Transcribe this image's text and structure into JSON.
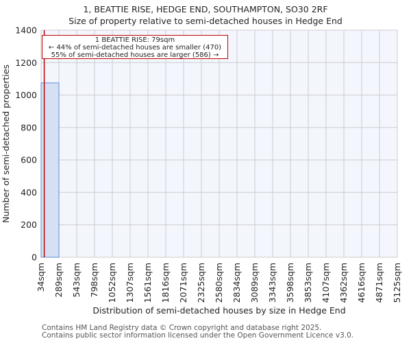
{
  "header": {
    "title": "1, BEATTIE RISE, HEDGE END, SOUTHAMPTON, SO30 2RF",
    "subtitle": "Size of property relative to semi-detached houses in Hedge End"
  },
  "annotation": {
    "line1": "1 BEATTIE RISE: 79sqm",
    "line2": "← 44% of semi-detached houses are smaller (470)",
    "line3": "55% of semi-detached houses are larger (586) →"
  },
  "footer": {
    "line1": "Contains HM Land Registry data © Crown copyright and database right 2025.",
    "line2": "Contains public sector information licensed under the Open Government Licence v3.0."
  },
  "colors": {
    "bar_fill": "#d6e0f5",
    "bar_edge": "#5b8fd0",
    "marker_line": "#c00000",
    "plot_bg": "#f4f6fe",
    "grid": "#cccccc"
  },
  "chart_data": {
    "type": "bar",
    "title": "1, BEATTIE RISE, HEDGE END, SOUTHAMPTON, SO30 2RF",
    "subtitle": "Size of property relative to semi-detached houses in Hedge End",
    "xlabel": "Distribution of semi-detached houses by size in Hedge End",
    "ylabel": "Number of semi-detached properties",
    "categories": [
      "34sqm",
      "289sqm",
      "543sqm",
      "798sqm",
      "1052sqm",
      "1307sqm",
      "1561sqm",
      "1816sqm",
      "2071sqm",
      "2325sqm",
      "2580sqm",
      "2834sqm",
      "3089sqm",
      "3343sqm",
      "3598sqm",
      "3853sqm",
      "4107sqm",
      "4362sqm",
      "4616sqm",
      "4871sqm",
      "5125sqm"
    ],
    "bin_edges": [
      34,
      289,
      543,
      798,
      1052,
      1307,
      1561,
      1816,
      2071,
      2325,
      2580,
      2834,
      3089,
      3343,
      3598,
      3853,
      4107,
      4362,
      4616,
      4871,
      5125
    ],
    "values": [
      1075,
      0,
      0,
      0,
      0,
      0,
      0,
      0,
      0,
      0,
      0,
      0,
      0,
      0,
      0,
      0,
      0,
      0,
      0,
      0
    ],
    "ylim": [
      0,
      1400
    ],
    "yticks": [
      0,
      200,
      400,
      600,
      800,
      1000,
      1200,
      1400
    ],
    "grid": true,
    "marker": {
      "value": 79,
      "label": "1 BEATTIE RISE: 79sqm"
    },
    "legend": null
  }
}
